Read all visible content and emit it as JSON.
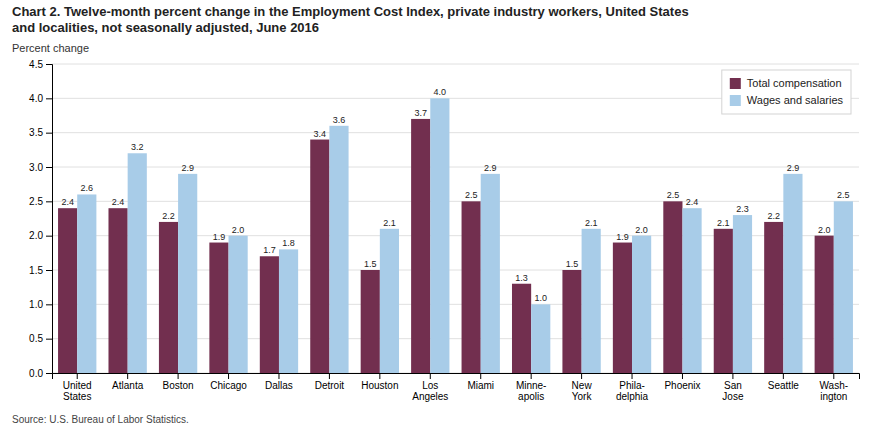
{
  "chart_data": {
    "type": "bar",
    "title": "Chart 2. Twelve-month percent change in the Employment Cost Index, private industry workers, United States\nand localities, not seasonally adjusted, June 2016",
    "ylabel": "Percent change",
    "annotations": [
      "Source: U.S. Bureau of Labor Statistics."
    ],
    "categories": [
      "United\nStates",
      "Atlanta",
      "Boston",
      "Chicago",
      "Dallas",
      "Detroit",
      "Houston",
      "Los\nAngeles",
      "Miami",
      "Minne-\napolis",
      "New\nYork",
      "Phila-\ndelphia",
      "Phoenix",
      "San\nJose",
      "Seattle",
      "Wash-\nington"
    ],
    "series": [
      {
        "name": "Total compensation",
        "color": "#722F4F",
        "values": [
          2.4,
          2.4,
          2.2,
          1.9,
          1.7,
          3.4,
          1.5,
          3.7,
          2.5,
          1.3,
          1.5,
          1.9,
          2.5,
          2.1,
          2.2,
          2.0
        ],
        "value_labels": [
          "2.4",
          "2.4",
          "2.2",
          "1.9",
          "1.7",
          "3.4",
          "1.5",
          "3.7",
          "2.5",
          "1.3",
          "1.5",
          "1.9",
          "2.5",
          "2.1",
          "2.2",
          "2.0"
        ]
      },
      {
        "name": "Wages and salaries",
        "color": "#A8CCE8",
        "values": [
          2.6,
          3.2,
          2.9,
          2.0,
          1.8,
          3.6,
          2.1,
          4.0,
          2.9,
          1.0,
          2.1,
          2.0,
          2.4,
          2.3,
          2.9,
          2.5
        ],
        "value_labels": [
          "2.6",
          "3.2",
          "2.9",
          "2.0",
          "1.8",
          "3.6",
          "2.1",
          "4.0",
          "2.9",
          "1.0",
          "2.1",
          "2.0",
          "2.4",
          "2.3",
          "2.9",
          "2.5"
        ]
      }
    ],
    "ylim": [
      0,
      4.5
    ],
    "yticks": [
      {
        "value": 0,
        "label": "0.0"
      },
      0.5,
      {
        "value": 1,
        "label": "1.0"
      },
      1.5,
      {
        "value": 2,
        "label": "2.0"
      },
      2.5,
      {
        "value": 3,
        "label": "3.0"
      },
      3.5,
      {
        "value": 4,
        "label": "4.0"
      },
      4.5
    ],
    "grid": true,
    "legend": "upper right",
    "data_labels": true
  }
}
